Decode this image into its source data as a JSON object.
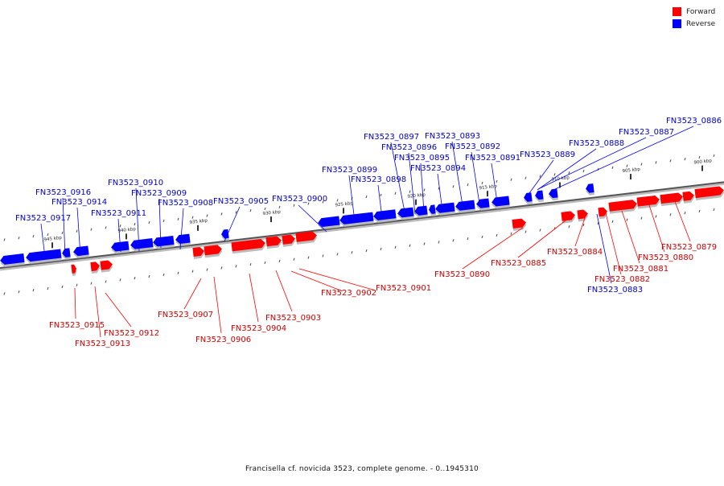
{
  "colors": {
    "forward": "#ff0000",
    "reverse": "#0000ff",
    "forward_label": "#cc0000",
    "reverse_label": "#0000cc"
  },
  "legend": {
    "forward": "Forward",
    "reverse": "Reverse"
  },
  "caption": "Francisella cf. novicida 3523, complete genome. - 0..1945310",
  "ticks": [
    {
      "label": "945 kbp"
    },
    {
      "label": "940 kbp"
    },
    {
      "label": "935 kbp"
    },
    {
      "label": "930 kbp"
    },
    {
      "label": "925 kbp"
    },
    {
      "label": "920 kbp"
    },
    {
      "label": "915 kbp"
    },
    {
      "label": "910 kbp"
    },
    {
      "label": "905 kbp"
    },
    {
      "label": "900 kbp"
    }
  ],
  "reverse_genes": [
    {
      "label": "FN3523_0917"
    },
    {
      "label": "FN3523_0916"
    },
    {
      "label": "FN3523_0914"
    },
    {
      "label": "FN3523_0911"
    },
    {
      "label": "FN3523_0910"
    },
    {
      "label": "FN3523_0909"
    },
    {
      "label": "FN3523_0908"
    },
    {
      "label": "FN3523_0905"
    },
    {
      "label": "FN3523_0900"
    },
    {
      "label": "FN3523_0899"
    },
    {
      "label": "FN3523_0898"
    },
    {
      "label": "FN3523_0897"
    },
    {
      "label": "FN3523_0896"
    },
    {
      "label": "FN3523_0895"
    },
    {
      "label": "FN3523_0894"
    },
    {
      "label": "FN3523_0893"
    },
    {
      "label": "FN3523_0892"
    },
    {
      "label": "FN3523_0891"
    },
    {
      "label": "FN3523_0889"
    },
    {
      "label": "FN3523_0888"
    },
    {
      "label": "FN3523_0887"
    },
    {
      "label": "FN3523_0886"
    },
    {
      "label": "FN3523_0883"
    }
  ],
  "forward_genes": [
    {
      "label": "FN3523_0915"
    },
    {
      "label": "FN3523_0913"
    },
    {
      "label": "FN3523_0912"
    },
    {
      "label": "FN3523_0907"
    },
    {
      "label": "FN3523_0906"
    },
    {
      "label": "FN3523_0904"
    },
    {
      "label": "FN3523_0903"
    },
    {
      "label": "FN3523_0902"
    },
    {
      "label": "FN3523_0901"
    },
    {
      "label": "FN3523_0890"
    },
    {
      "label": "FN3523_0885"
    },
    {
      "label": "FN3523_0884"
    },
    {
      "label": "FN3523_0882"
    },
    {
      "label": "FN3523_0881"
    },
    {
      "label": "FN3523_0880"
    },
    {
      "label": "FN3523_0879"
    }
  ]
}
